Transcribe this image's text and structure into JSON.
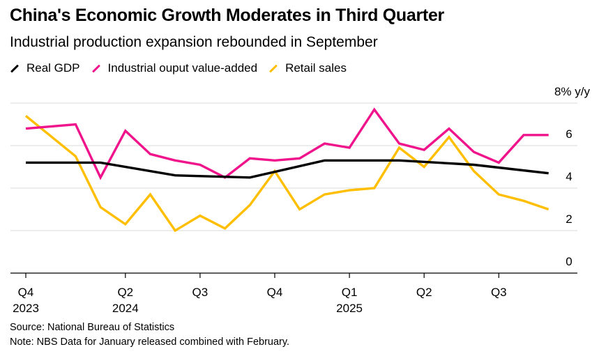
{
  "chart_data": {
    "type": "line",
    "title": "China's Economic Growth Moderates in Third Quarter",
    "subtitle": "Industrial production expansion rebounded in September",
    "y_unit_label": "8% y/y",
    "ylim": [
      0,
      8
    ],
    "y_ticks": [
      0,
      2,
      4,
      6
    ],
    "y_tick_labels": [
      "0",
      "2",
      "4",
      "6"
    ],
    "grid": true,
    "legend_position": "top-left",
    "x_ticks": [
      {
        "index": 0,
        "label": "Q4",
        "year": "2023"
      },
      {
        "index": 4,
        "label": "Q2",
        "year": "2024"
      },
      {
        "index": 7,
        "label": "Q3",
        "year": ""
      },
      {
        "index": 10,
        "label": "Q4",
        "year": ""
      },
      {
        "index": 13,
        "label": "Q1",
        "year": "2025"
      },
      {
        "index": 16,
        "label": "Q2",
        "year": ""
      },
      {
        "index": 19,
        "label": "Q3",
        "year": ""
      }
    ],
    "x_count": 23,
    "series": [
      {
        "name": "Real GDP",
        "color": "#000000",
        "x": [
          0,
          3,
          6,
          9,
          12,
          15,
          18,
          21
        ],
        "values": [
          5.2,
          5.2,
          4.6,
          4.5,
          5.3,
          5.3,
          5.1,
          4.7
        ]
      },
      {
        "name": "Industrial ouput value-added",
        "color": "#f0148c",
        "x": [
          0,
          2,
          3,
          4,
          5,
          6,
          7,
          8,
          9,
          10,
          11,
          12,
          13,
          14,
          15,
          16,
          17,
          18,
          19,
          20,
          21
        ],
        "values": [
          6.8,
          7.0,
          4.5,
          6.7,
          5.6,
          5.3,
          5.1,
          4.5,
          5.4,
          5.3,
          5.4,
          6.1,
          5.9,
          7.7,
          6.1,
          5.8,
          6.8,
          5.7,
          5.2,
          6.5,
          6.5
        ]
      },
      {
        "name": "Retail sales",
        "color": "#ffbf00",
        "x": [
          0,
          2,
          3,
          4,
          5,
          6,
          7,
          8,
          9,
          10,
          11,
          12,
          13,
          14,
          15,
          16,
          17,
          18,
          19,
          20,
          21
        ],
        "values": [
          7.4,
          5.5,
          3.1,
          2.3,
          3.7,
          2.0,
          2.7,
          2.1,
          3.2,
          4.8,
          3.0,
          3.7,
          3.9,
          4.0,
          5.9,
          5.0,
          6.4,
          4.8,
          3.7,
          3.4,
          3.0
        ]
      }
    ],
    "source": "Source: National Bureau of Statistics",
    "note": "Note: NBS Data for January released combined with February."
  }
}
